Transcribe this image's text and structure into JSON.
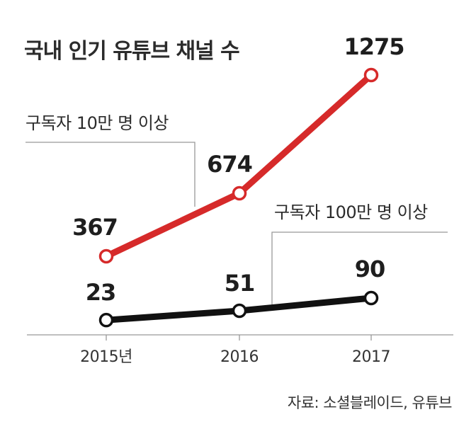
{
  "chart_data": {
    "type": "line",
    "title": "국내 인기 유튜브 채널 수",
    "categories": [
      "2015년",
      "2016",
      "2017"
    ],
    "series": [
      {
        "name": "구독자 10만 명 이상",
        "values": [
          367,
          674,
          1275
        ],
        "color": "#d62a2a"
      },
      {
        "name": "구독자 100만 명 이상",
        "values": [
          23,
          51,
          90
        ],
        "color": "#111111"
      }
    ],
    "xlabel": "",
    "ylabel": "",
    "grid": false,
    "source": "자료: 소셜블레이드, 유튜브"
  }
}
